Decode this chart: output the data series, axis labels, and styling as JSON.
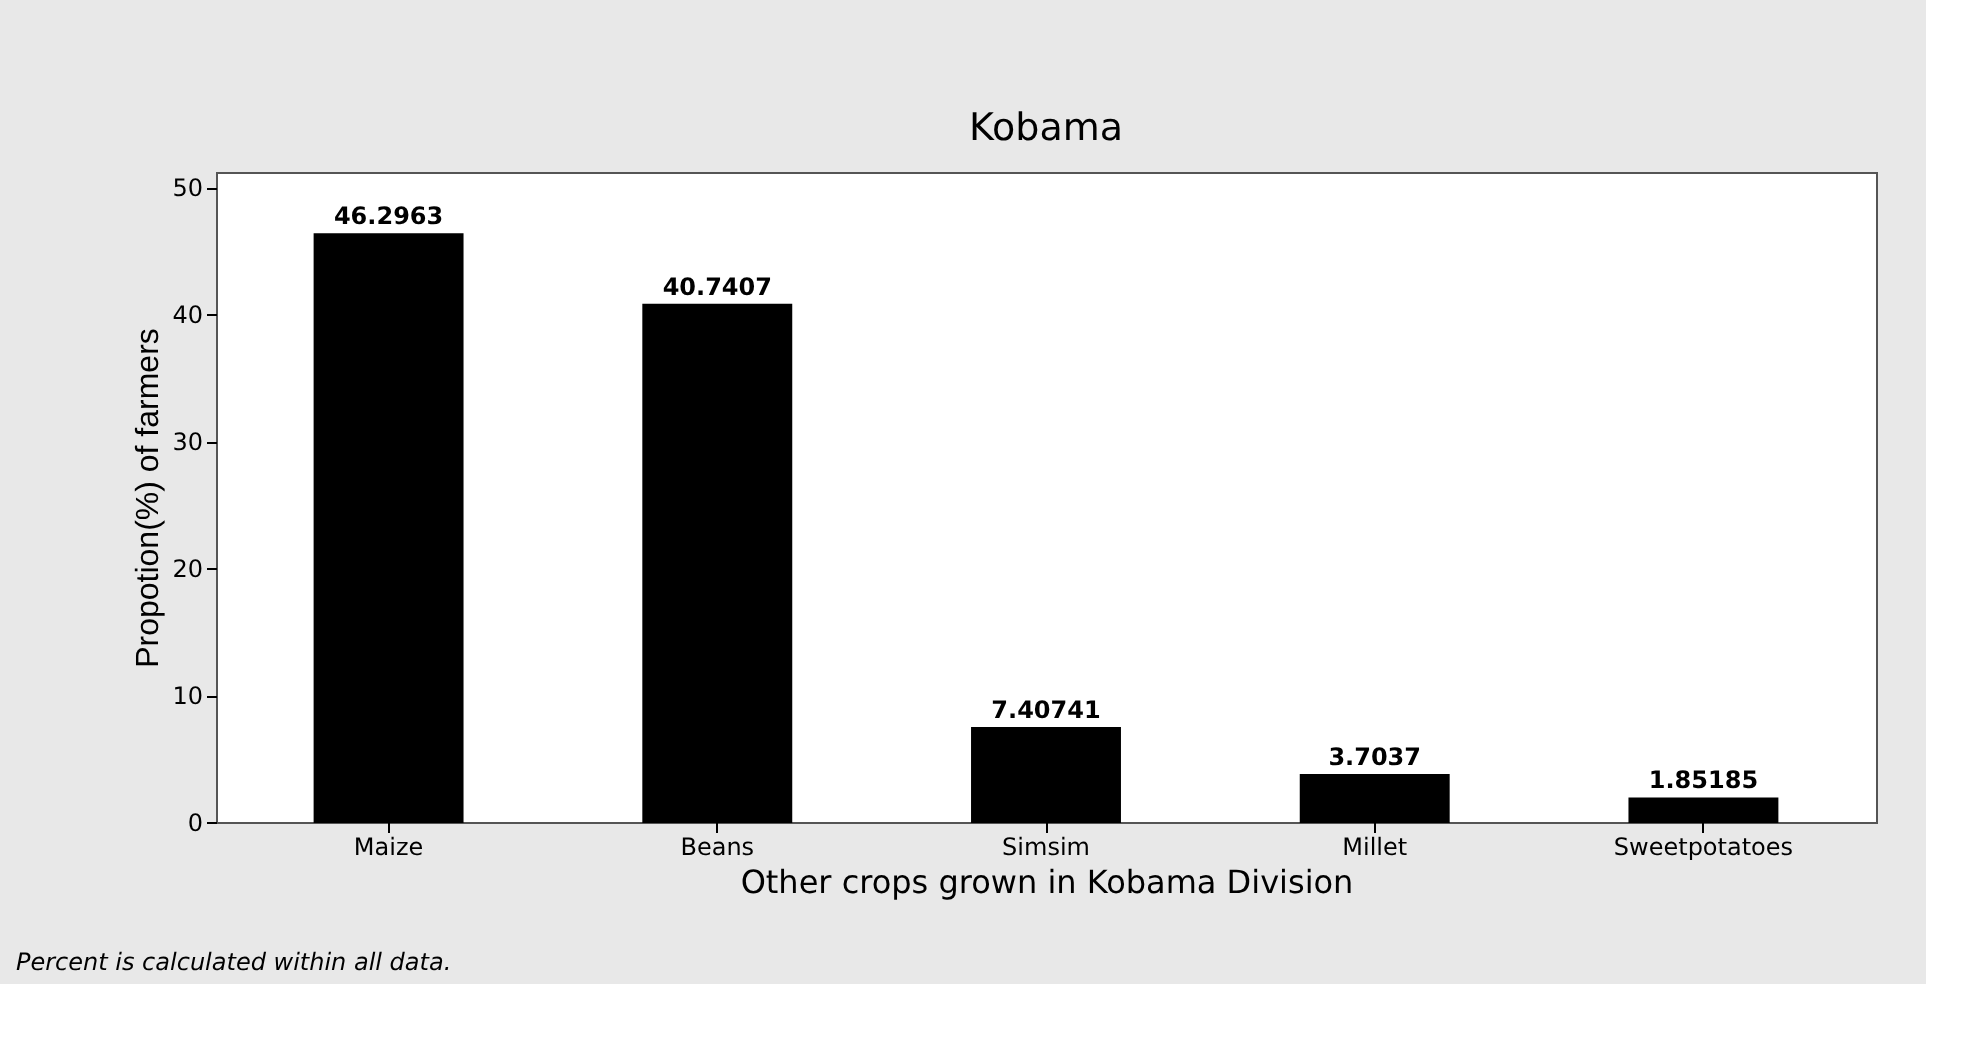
{
  "chart_data": {
    "type": "bar",
    "title": "Kobama",
    "xlabel": "Other crops grown in Kobama Division",
    "ylabel": "Propotion(%) of farmers",
    "categories": [
      "Maize",
      "Beans",
      "Simsim",
      "Millet",
      "Sweetpotatoes"
    ],
    "values": [
      46.2963,
      40.7407,
      7.40741,
      3.7037,
      1.85185
    ],
    "color": "#000000",
    "data_labels": true,
    "ylim": [
      0,
      51.2
    ],
    "yticks": [
      0,
      10,
      20,
      30,
      40,
      50
    ],
    "grid": false,
    "annotations": [
      "Percent is calculated within all data."
    ]
  }
}
